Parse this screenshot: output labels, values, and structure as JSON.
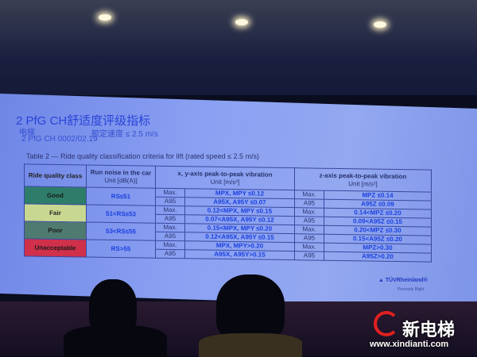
{
  "slide": {
    "title": "2 PfG CH舒适度评级指标",
    "subtitle_left": "电梯",
    "subtitle_right": "额定速度 ≤ 2.5 m/s",
    "document_code": "2 PfG CH 0002/02.19",
    "table_caption": "Table 2 — Ride quality classification criteria for lift (rated speed ≤ 2.5 m/s)",
    "headers": {
      "class": "Ride quality class",
      "noise": "Run noise in the car",
      "noise_unit": "Unit [dB(A)]",
      "xy": "x, y-axis peak-to-peak vibration",
      "xy_unit": "Unit [m/s²]",
      "z": "z-axis peak-to-peak vibration",
      "z_unit": "Unit [m/s²]"
    },
    "rows": [
      {
        "class": "Good",
        "color": "#2e7d6a",
        "noise": "RS≤51",
        "xy_label_max": "Max.",
        "xy_max": "MPX, MPY ≤0.12",
        "xy_label_a95": "A95",
        "xy_a95": "A95X, A95Y ≤0.07",
        "z_label_max": "Max.",
        "z_max": "MPZ ≤0.14",
        "z_label_a95": "A95",
        "z_a95": "A95Z ≤0.09"
      },
      {
        "class": "Fair",
        "color": "#c8d890",
        "noise": "51<RS≤53",
        "xy_label_max": "Max.",
        "xy_max": "0.12<MPX, MPY ≤0.15",
        "xy_label_a95": "A95",
        "xy_a95": "0.07<A95X, A95Y ≤0.12",
        "z_label_max": "Max.",
        "z_max": "0.14<MPZ ≤0.20",
        "z_label_a95": "A95",
        "z_a95": "0.09<A95Z ≤0.15"
      },
      {
        "class": "Poor",
        "color": "#4f7a70",
        "noise": "53<RS≤55",
        "xy_label_max": "Max.",
        "xy_max": "0.15<MPX, MPY ≤0.20",
        "xy_label_a95": "A95",
        "xy_a95": "0.12<A95X, A95Y ≤0.15",
        "z_label_max": "Max.",
        "z_max": "0.20<MPZ ≤0.30",
        "z_label_a95": "A95",
        "z_a95": "0.15<A95Z ≤0.20"
      },
      {
        "class": "Unacceptable",
        "color": "#d0304a",
        "noise": "RS>55",
        "xy_label_max": "Max.",
        "xy_max": "MPX, MPY>0.20",
        "xy_label_a95": "A95",
        "xy_a95": "A95X, A95Y>0.15",
        "z_label_max": "Max.",
        "z_max": "MPZ>0.30",
        "z_label_a95": "A95",
        "z_a95": "A95Z>0.20"
      }
    ],
    "footer_brand": "TÜVRheinland®",
    "footer_tagline": "Precisely Right."
  },
  "watermark": {
    "name": "新电梯",
    "url": "www.xindianti.com"
  }
}
